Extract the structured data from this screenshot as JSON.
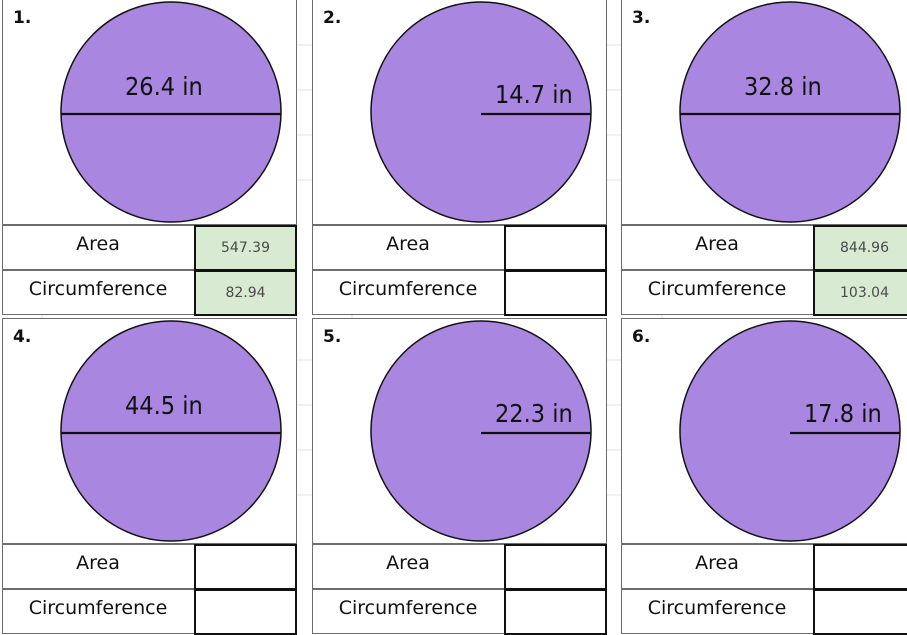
{
  "row_labels": {
    "area": "Area",
    "circumference": "Circumference"
  },
  "colors": {
    "circle_fill": "#a987e0",
    "answer_filled": "#d9ead3"
  },
  "problems": [
    {
      "number": "1.",
      "measure": "26.4 in",
      "kind": "diameter",
      "area": "547.39",
      "circumference": "82.94"
    },
    {
      "number": "2.",
      "measure": "14.7 in",
      "kind": "radius",
      "area": "",
      "circumference": ""
    },
    {
      "number": "3.",
      "measure": "32.8 in",
      "kind": "diameter",
      "area": "844.96",
      "circumference": "103.04"
    },
    {
      "number": "4.",
      "measure": "44.5 in",
      "kind": "diameter",
      "area": "",
      "circumference": ""
    },
    {
      "number": "5.",
      "measure": "22.3 in",
      "kind": "radius",
      "area": "",
      "circumference": ""
    },
    {
      "number": "6.",
      "measure": "17.8 in",
      "kind": "radius",
      "area": "",
      "circumference": ""
    }
  ]
}
